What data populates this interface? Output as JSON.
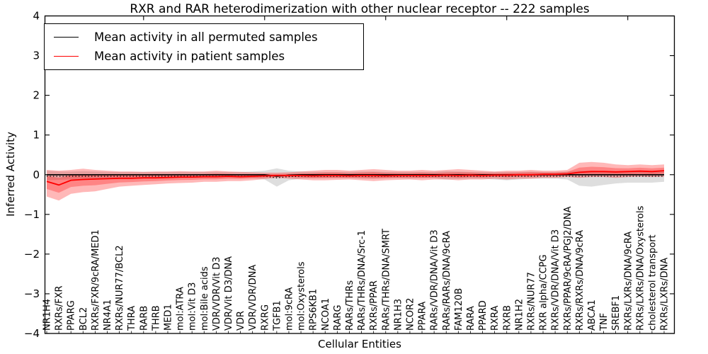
{
  "legend": {
    "items": [
      {
        "label": "Mean activity in all permuted samples",
        "color": "#000000"
      },
      {
        "label": "Mean activity in patient samples",
        "color": "#ff0000"
      }
    ]
  },
  "chart_data": {
    "type": "line",
    "title": "RXR and RAR heterodimerization with other nuclear receptor -- 222 samples",
    "xlabel": "Cellular Entities",
    "ylabel": "Inferred Activity",
    "ylim": [
      -4,
      4
    ],
    "yticks": [
      4,
      3,
      2,
      1,
      0,
      -1,
      -2,
      -3,
      -4
    ],
    "grid": false,
    "legend_position": "upper left",
    "top_tick_indices": [
      8,
      18,
      28,
      38,
      48
    ],
    "categories": [
      "NR1H4",
      "RXRs/FXR",
      "PPARG",
      "BCL2",
      "RXRs/FXR/9cRA/MED1",
      "NR4A1",
      "RXRs/NUR77/BCL2",
      "THRA",
      "RARB",
      "THRB",
      "MED1",
      "mol:ATRA",
      "mol:Vit D3",
      "mol:Bile acids",
      "VDR/VDR/Vit D3",
      "VDR/Vit D3/DNA",
      "VDR",
      "VDR/VDR/DNA",
      "RXRG",
      "TGFB1",
      "mol:9cRA",
      "mol:Oxysterols",
      "RPS6KB1",
      "NCOA1",
      "RARG",
      "RARs/THRs",
      "RARs/THRs/DNA/Src-1",
      "RXRs/PPAR",
      "RARs/THRs/DNA/SMRT",
      "NR1H3",
      "NCOR2",
      "PPARA",
      "RARs/VDR/DNA/Vit D3",
      "RARs/RARs/DNA/9cRA",
      "FAM120B",
      "RARA",
      "PPARD",
      "RXRA",
      "RXRB",
      "NR1H2",
      "RXRs/NUR77",
      "RXR alpha/CCPG",
      "RXRs/VDR/DNA/Vit D3",
      "RXRs/PPAR/9cRA/PGJ2/DNA",
      "RXRs/RXRs/DNA/9cRA",
      "ABCA1",
      "TNF",
      "SREBF1",
      "RXRs/LXRs/DNA/9cRA",
      "RXRs/LXRs/DNA/Oxysterols",
      "cholesterol transport",
      "RXRs/LXRs/DNA"
    ],
    "series": [
      {
        "name": "Mean activity in all permuted samples",
        "color": "#000000",
        "band_color": "#000000",
        "band_opacity": 0.13,
        "dotted_overlay": true,
        "values": [
          0,
          0,
          0,
          0,
          0,
          0,
          0,
          0,
          0,
          0,
          0,
          0,
          0,
          0,
          0,
          0,
          0,
          0,
          0,
          -0.04,
          -0.01,
          0,
          0,
          0,
          0,
          0,
          0,
          0,
          0,
          0,
          0,
          0,
          0,
          0,
          0,
          0,
          0,
          0,
          0,
          0,
          0,
          0,
          0,
          0,
          0,
          0,
          0,
          0,
          0,
          0,
          0,
          0
        ],
        "band_upper": [
          0.1,
          0.08,
          0.08,
          0.09,
          0.08,
          0.07,
          0.07,
          0.07,
          0.07,
          0.07,
          0.07,
          0.07,
          0.07,
          0.07,
          0.07,
          0.07,
          0.07,
          0.08,
          0.1,
          0.16,
          0.1,
          0.08,
          0.07,
          0.07,
          0.07,
          0.07,
          0.08,
          0.08,
          0.07,
          0.07,
          0.07,
          0.07,
          0.07,
          0.09,
          0.08,
          0.07,
          0.07,
          0.07,
          0.07,
          0.07,
          0.08,
          0.07,
          0.07,
          0.08,
          0.1,
          0.1,
          0.09,
          0.08,
          0.08,
          0.08,
          0.08,
          0.08
        ],
        "band_lower": [
          -0.14,
          -0.13,
          -0.12,
          -0.12,
          -0.11,
          -0.1,
          -0.1,
          -0.1,
          -0.09,
          -0.09,
          -0.09,
          -0.09,
          -0.08,
          -0.08,
          -0.08,
          -0.08,
          -0.08,
          -0.09,
          -0.12,
          -0.3,
          -0.14,
          -0.1,
          -0.09,
          -0.09,
          -0.09,
          -0.09,
          -0.1,
          -0.1,
          -0.09,
          -0.09,
          -0.1,
          -0.09,
          -0.09,
          -0.12,
          -0.11,
          -0.1,
          -0.1,
          -0.12,
          -0.14,
          -0.12,
          -0.1,
          -0.1,
          -0.1,
          -0.12,
          -0.28,
          -0.3,
          -0.26,
          -0.22,
          -0.2,
          -0.2,
          -0.2,
          -0.18
        ]
      },
      {
        "name": "Mean activity in patient samples",
        "color": "#ff0000",
        "band_color": "#ff0000",
        "band_opacity": 0.28,
        "inner_band_ratio": 0.5,
        "dotted_overlay": false,
        "values": [
          -0.17,
          -0.26,
          -0.14,
          -0.12,
          -0.11,
          -0.1,
          -0.09,
          -0.09,
          -0.08,
          -0.08,
          -0.07,
          -0.06,
          -0.06,
          -0.05,
          -0.05,
          -0.04,
          -0.05,
          -0.04,
          -0.03,
          -0.02,
          -0.02,
          -0.02,
          -0.03,
          -0.02,
          -0.02,
          -0.03,
          -0.02,
          -0.02,
          -0.03,
          -0.02,
          -0.02,
          -0.02,
          -0.02,
          -0.01,
          -0.02,
          -0.01,
          -0.02,
          -0.01,
          -0.01,
          0.0,
          0.0,
          0.01,
          0.01,
          0.02,
          0.06,
          0.08,
          0.08,
          0.07,
          0.08,
          0.09,
          0.08,
          0.1
        ],
        "band_upper": [
          0.12,
          0.1,
          0.12,
          0.15,
          0.12,
          0.1,
          0.08,
          0.08,
          0.07,
          0.08,
          0.08,
          0.09,
          0.08,
          0.08,
          0.1,
          0.08,
          0.07,
          0.06,
          0.05,
          0.05,
          0.06,
          0.08,
          0.1,
          0.12,
          0.12,
          0.1,
          0.12,
          0.14,
          0.12,
          0.1,
          0.1,
          0.12,
          0.1,
          0.12,
          0.14,
          0.12,
          0.1,
          0.08,
          0.1,
          0.1,
          0.12,
          0.1,
          0.1,
          0.12,
          0.3,
          0.32,
          0.3,
          0.26,
          0.24,
          0.26,
          0.24,
          0.26
        ],
        "band_lower": [
          -0.55,
          -0.65,
          -0.48,
          -0.44,
          -0.42,
          -0.36,
          -0.3,
          -0.28,
          -0.26,
          -0.24,
          -0.22,
          -0.21,
          -0.2,
          -0.18,
          -0.18,
          -0.16,
          -0.16,
          -0.14,
          -0.11,
          -0.08,
          -0.1,
          -0.12,
          -0.14,
          -0.14,
          -0.13,
          -0.12,
          -0.14,
          -0.16,
          -0.14,
          -0.13,
          -0.12,
          -0.14,
          -0.12,
          -0.12,
          -0.14,
          -0.12,
          -0.12,
          -0.1,
          -0.12,
          -0.1,
          -0.1,
          -0.08,
          -0.08,
          -0.06,
          -0.08,
          -0.06,
          -0.06,
          -0.08,
          -0.06,
          -0.05,
          -0.06,
          -0.05
        ]
      }
    ]
  }
}
